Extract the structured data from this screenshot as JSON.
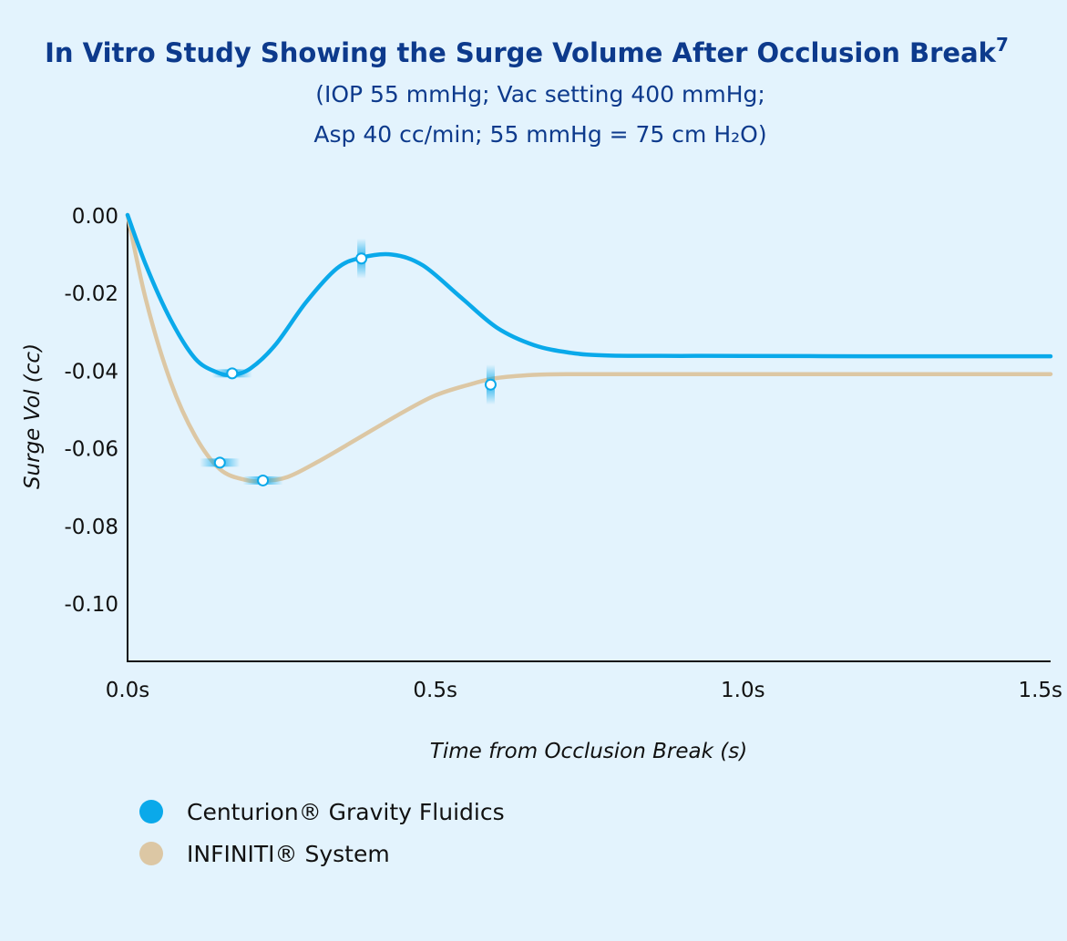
{
  "chart_data": {
    "type": "line",
    "title": "In Vitro Study Showing the Surge Volume After Occlusion Break",
    "title_superscript": "7",
    "subtitle_lines": [
      "(IOP 55 mmHg; Vac setting 400 mmHg;",
      "Asp 40 cc/min; 55 mmHg = 75 cm H₂O)"
    ],
    "xlabel": "Time from Occlusion Break (s)",
    "ylabel": "Surge Vol (cc)",
    "xlim": [
      0,
      1.5
    ],
    "ylim": [
      -0.115,
      0
    ],
    "xticks": [
      {
        "value": 0,
        "label": "0.0s"
      },
      {
        "value": 0.5,
        "label": "0.5s"
      },
      {
        "value": 1.0,
        "label": "1.0s"
      },
      {
        "value": 1.5,
        "label": "1.5s"
      }
    ],
    "yticks": [
      {
        "value": 0,
        "label": "0.00"
      },
      {
        "value": -0.02,
        "label": "-0.02"
      },
      {
        "value": -0.04,
        "label": "-0.04"
      },
      {
        "value": -0.06,
        "label": "-0.06"
      },
      {
        "value": -0.08,
        "label": "-0.08"
      },
      {
        "value": -0.1,
        "label": "-0.10"
      }
    ],
    "grid": false,
    "legend_position": "bottom-left",
    "series": [
      {
        "name": "Centurion® Gravity Fluidics",
        "color": "#0aa9ea",
        "x": [
          0,
          0.03,
          0.07,
          0.11,
          0.145,
          0.17,
          0.2,
          0.24,
          0.29,
          0.34,
          0.38,
          0.43,
          0.48,
          0.54,
          0.6,
          0.66,
          0.72,
          0.78,
          0.9,
          1.0,
          1.2,
          1.4,
          1.5
        ],
        "values": [
          0,
          -0.013,
          -0.027,
          -0.037,
          -0.0405,
          -0.0412,
          -0.0395,
          -0.0335,
          -0.0225,
          -0.0138,
          -0.011,
          -0.0102,
          -0.013,
          -0.021,
          -0.029,
          -0.0335,
          -0.0355,
          -0.0362,
          -0.0363,
          -0.0363,
          -0.0364,
          -0.0364,
          -0.0364
        ],
        "markers": [
          {
            "x": 0.17,
            "y": -0.0408
          },
          {
            "x": 0.38,
            "y": -0.0112
          }
        ]
      },
      {
        "name": "INFINITI® System",
        "color": "#dcc7a4",
        "x": [
          0,
          0.03,
          0.07,
          0.11,
          0.15,
          0.19,
          0.22,
          0.26,
          0.31,
          0.37,
          0.44,
          0.5,
          0.56,
          0.6,
          0.66,
          0.72,
          0.8,
          0.9,
          1.0,
          1.2,
          1.5
        ],
        "values": [
          0,
          -0.022,
          -0.043,
          -0.057,
          -0.0655,
          -0.0682,
          -0.0685,
          -0.0675,
          -0.0635,
          -0.058,
          -0.0515,
          -0.0465,
          -0.0435,
          -0.042,
          -0.0412,
          -0.041,
          -0.041,
          -0.041,
          -0.041,
          -0.041,
          -0.041
        ],
        "markers": [
          {
            "x": 0.15,
            "y": -0.0638
          },
          {
            "x": 0.22,
            "y": -0.0684
          },
          {
            "x": 0.59,
            "y": -0.0437
          }
        ]
      }
    ]
  }
}
